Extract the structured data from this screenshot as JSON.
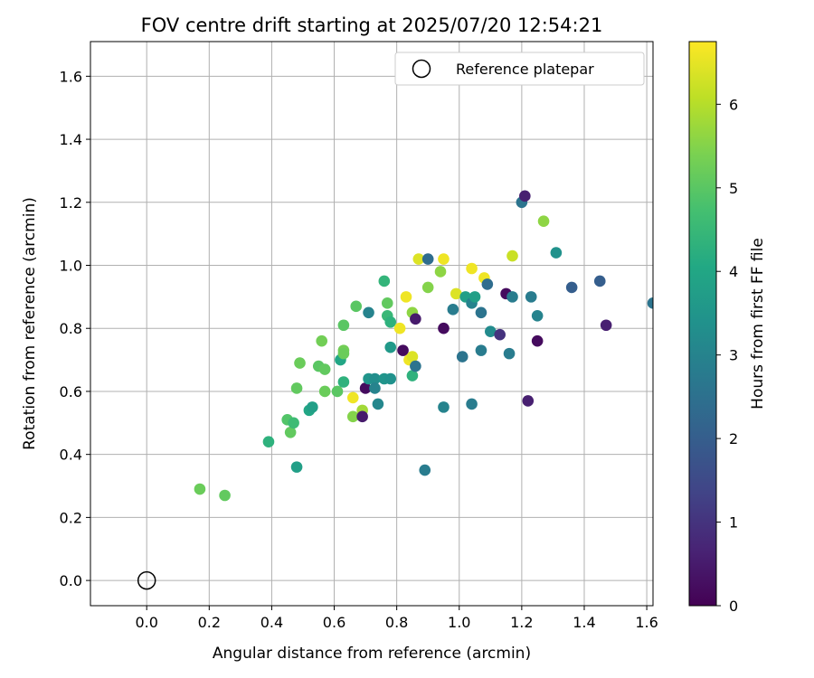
{
  "chart_data": {
    "type": "scatter",
    "title": "FOV centre drift starting at 2025/07/20 12:54:21",
    "xlabel": "Angular distance from reference (arcmin)",
    "ylabel": "Rotation from reference (arcmin)",
    "xlim": [
      -0.18,
      1.62
    ],
    "ylim": [
      -0.08,
      1.71
    ],
    "xticks": [
      0.0,
      0.2,
      0.4,
      0.6,
      0.8,
      1.0,
      1.2,
      1.4,
      1.6
    ],
    "xtick_labels": [
      "0.0",
      "0.2",
      "0.4",
      "0.6",
      "0.8",
      "1.0",
      "1.2",
      "1.4",
      "1.6"
    ],
    "yticks": [
      0.0,
      0.2,
      0.4,
      0.6,
      0.8,
      1.0,
      1.2,
      1.4,
      1.6
    ],
    "ytick_labels": [
      "0.0",
      "0.2",
      "0.4",
      "0.6",
      "0.8",
      "1.0",
      "1.2",
      "1.4",
      "1.6"
    ],
    "grid": true,
    "legend": {
      "position": "upper right",
      "label": "Reference platepar"
    },
    "reference_point": [
      0.0,
      0.0
    ],
    "colorbar": {
      "label": "Hours from first FF file",
      "colormap": "viridis",
      "range": [
        0,
        6.75
      ],
      "ticks": [
        0,
        1,
        2,
        3,
        4,
        5,
        6
      ],
      "tick_labels": [
        "0",
        "1",
        "2",
        "3",
        "4",
        "5",
        "6"
      ]
    },
    "points_format": [
      "x",
      "y",
      "hours"
    ],
    "points": [
      [
        0.17,
        0.29,
        5.2
      ],
      [
        0.25,
        0.27,
        5.1
      ],
      [
        0.39,
        0.44,
        4.3
      ],
      [
        0.45,
        0.51,
        4.9
      ],
      [
        0.46,
        0.47,
        5.1
      ],
      [
        0.47,
        0.5,
        4.6
      ],
      [
        0.48,
        0.61,
        5.1
      ],
      [
        0.48,
        0.36,
        3.8
      ],
      [
        0.49,
        0.69,
        5.2
      ],
      [
        0.52,
        0.54,
        4.0
      ],
      [
        0.53,
        0.55,
        3.8
      ],
      [
        0.55,
        0.68,
        5.0
      ],
      [
        0.56,
        0.76,
        5.3
      ],
      [
        0.57,
        0.67,
        5.1
      ],
      [
        0.57,
        0.6,
        5.2
      ],
      [
        0.61,
        0.6,
        5.0
      ],
      [
        0.62,
        0.7,
        4.0
      ],
      [
        0.63,
        0.81,
        5.0
      ],
      [
        0.63,
        0.73,
        5.3
      ],
      [
        0.63,
        0.72,
        5.2
      ],
      [
        0.63,
        0.63,
        4.3
      ],
      [
        0.66,
        0.52,
        5.5
      ],
      [
        0.66,
        0.58,
        6.6
      ],
      [
        0.67,
        0.87,
        5.0
      ],
      [
        0.69,
        0.54,
        5.8
      ],
      [
        0.69,
        0.52,
        0.5
      ],
      [
        0.7,
        0.61,
        0.2
      ],
      [
        0.71,
        0.64,
        3.5
      ],
      [
        0.71,
        0.85,
        3.0
      ],
      [
        0.73,
        0.64,
        3.3
      ],
      [
        0.73,
        0.61,
        3.0
      ],
      [
        0.74,
        0.56,
        3.1
      ],
      [
        0.76,
        0.64,
        3.5
      ],
      [
        0.76,
        0.95,
        4.4
      ],
      [
        0.77,
        0.88,
        5.1
      ],
      [
        0.77,
        0.84,
        4.5
      ],
      [
        0.78,
        0.82,
        4.3
      ],
      [
        0.78,
        0.74,
        3.6
      ],
      [
        0.78,
        0.64,
        3.4
      ],
      [
        0.81,
        0.8,
        6.6
      ],
      [
        0.82,
        0.73,
        0.2
      ],
      [
        0.83,
        0.9,
        6.6
      ],
      [
        0.84,
        0.7,
        6.6
      ],
      [
        0.85,
        0.71,
        6.4
      ],
      [
        0.85,
        0.65,
        4.3
      ],
      [
        0.85,
        0.85,
        5.6
      ],
      [
        0.86,
        0.68,
        2.6
      ],
      [
        0.86,
        0.83,
        0.5
      ],
      [
        0.87,
        1.02,
        6.4
      ],
      [
        0.89,
        0.35,
        2.8
      ],
      [
        0.9,
        1.02,
        2.4
      ],
      [
        0.9,
        0.93,
        5.5
      ],
      [
        0.94,
        0.98,
        5.6
      ],
      [
        0.95,
        1.02,
        6.6
      ],
      [
        0.95,
        0.8,
        0.2
      ],
      [
        0.95,
        0.55,
        3.0
      ],
      [
        0.98,
        0.86,
        2.8
      ],
      [
        0.99,
        0.91,
        6.4
      ],
      [
        1.01,
        0.71,
        2.6
      ],
      [
        1.02,
        0.9,
        3.8
      ],
      [
        1.04,
        0.99,
        6.6
      ],
      [
        1.04,
        0.88,
        3.0
      ],
      [
        1.04,
        0.56,
        2.8
      ],
      [
        1.05,
        0.9,
        3.8
      ],
      [
        1.07,
        0.85,
        2.6
      ],
      [
        1.07,
        0.73,
        2.8
      ],
      [
        1.08,
        0.96,
        6.6
      ],
      [
        1.09,
        0.94,
        2.4
      ],
      [
        1.1,
        0.79,
        3.2
      ],
      [
        1.13,
        0.78,
        1.0
      ],
      [
        1.15,
        0.91,
        0.2
      ],
      [
        1.16,
        0.72,
        2.8
      ],
      [
        1.17,
        0.9,
        2.8
      ],
      [
        1.17,
        1.03,
        6.2
      ],
      [
        1.2,
        1.2,
        2.6
      ],
      [
        1.21,
        1.22,
        0.6
      ],
      [
        1.22,
        0.57,
        0.6
      ],
      [
        1.23,
        0.9,
        2.8
      ],
      [
        1.25,
        0.84,
        3.0
      ],
      [
        1.25,
        0.76,
        0.2
      ],
      [
        1.27,
        1.14,
        5.6
      ],
      [
        1.31,
        1.04,
        3.4
      ],
      [
        1.36,
        0.93,
        2.0
      ],
      [
        1.45,
        0.95,
        2.0
      ],
      [
        1.47,
        0.81,
        0.6
      ],
      [
        1.62,
        0.88,
        2.6
      ]
    ]
  }
}
